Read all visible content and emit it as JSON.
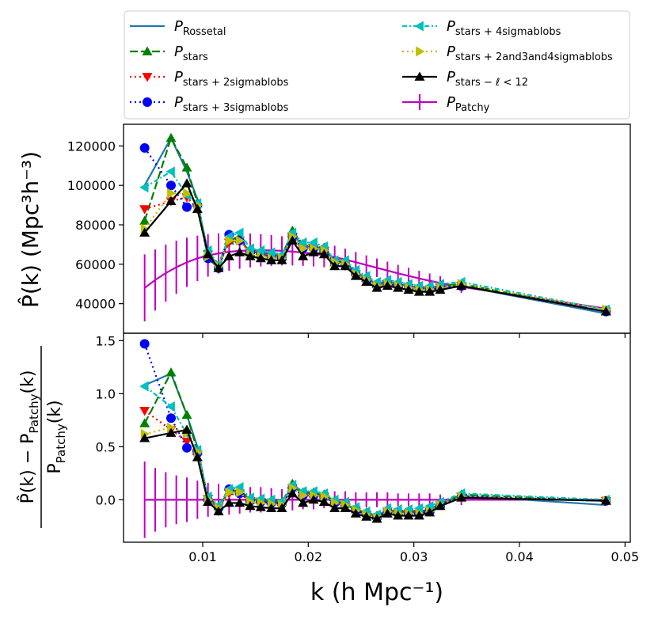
{
  "chart_data": [
    {
      "panel": "top",
      "type": "line",
      "ylabel": "P̂(k) (Mpc³h⁻³)",
      "xlim": [
        0.0025,
        0.0505
      ],
      "ylim": [
        25000,
        131000
      ],
      "yticks": [
        40000,
        60000,
        80000,
        100000,
        120000
      ],
      "ytick_labels": [
        "40000",
        "60000",
        "80000",
        "100000",
        "120000"
      ],
      "x": [
        0.0045,
        0.007,
        0.0085,
        0.0095,
        0.0105,
        0.0115,
        0.0125,
        0.0135,
        0.0145,
        0.0155,
        0.0165,
        0.0175,
        0.0185,
        0.0195,
        0.0205,
        0.0215,
        0.0225,
        0.0235,
        0.0245,
        0.0255,
        0.0265,
        0.0275,
        0.0285,
        0.0295,
        0.0305,
        0.0315,
        0.0325,
        0.0345,
        0.0482
      ],
      "series": [
        {
          "name": "Rossetal",
          "color": "#1f77b4",
          "dash": "",
          "marker": "none",
          "values": [
            100000,
            124000,
            107000,
            93000,
            63000,
            58000,
            73000,
            73000,
            66000,
            66000,
            65000,
            64000,
            76000,
            69000,
            69000,
            68000,
            62000,
            61000,
            56000,
            53000,
            50000,
            51000,
            50000,
            49000,
            48000,
            48000,
            49000,
            49000,
            35000
          ]
        },
        {
          "name": "stars",
          "color": "#008000",
          "dash": "10,4",
          "marker": "triangle-up",
          "values": [
            82000,
            124000,
            109000,
            91000,
            66000,
            59000,
            72000,
            74000,
            66000,
            66000,
            65000,
            64000,
            77000,
            70000,
            70000,
            68000,
            61000,
            61000,
            56000,
            53000,
            50000,
            51000,
            50000,
            49000,
            48000,
            48000,
            49000,
            50000,
            36000
          ]
        },
        {
          "name": "stars + 2sigmablobs",
          "color": "#ff0000",
          "dash": "2,4",
          "marker": "triangle-down",
          "values": [
            88000,
            92000,
            94000,
            88000,
            65000,
            59000,
            71000,
            72000,
            66000,
            65000,
            64000,
            63000,
            74000,
            68000,
            68000,
            67000,
            61000,
            60000,
            55000,
            52000,
            49000,
            50000,
            49000,
            48000,
            47000,
            47000,
            48000,
            49000,
            36000
          ]
        },
        {
          "name": "stars + 3sigmablobs",
          "color": "#0000ff",
          "dash": "2,4",
          "marker": "circle",
          "values": [
            119000,
            100000,
            89000,
            90000,
            63000,
            58000,
            75000,
            72000,
            66000,
            65000,
            64000,
            63000,
            74000,
            68000,
            68000,
            67000,
            61000,
            60000,
            55000,
            52000,
            49000,
            50000,
            49000,
            48000,
            47000,
            47000,
            48000,
            49000,
            36000
          ]
        },
        {
          "name": "stars + 4sigmablobs",
          "color": "#00bfbf",
          "dash": "6,3,2,3",
          "marker": "triangle-left",
          "values": [
            99000,
            107000,
            95000,
            91000,
            67000,
            60000,
            74000,
            76000,
            68000,
            67000,
            66000,
            65000,
            76000,
            71000,
            71000,
            69000,
            62000,
            62000,
            57000,
            54000,
            51000,
            52000,
            51000,
            50000,
            49000,
            49000,
            50000,
            51000,
            37000
          ]
        },
        {
          "name": "stars + 2and3and4sigmablobs",
          "color": "#bfbf00",
          "dash": "2,4",
          "marker": "triangle-right",
          "values": [
            78000,
            96000,
            96000,
            90000,
            64000,
            59000,
            72000,
            72000,
            65000,
            64000,
            63000,
            63000,
            74000,
            68000,
            68000,
            67000,
            61000,
            60000,
            55000,
            52000,
            49000,
            50000,
            49000,
            48000,
            47000,
            47000,
            48000,
            50000,
            37000
          ]
        },
        {
          "name": "stars − ℓ < 12",
          "color": "#000000",
          "dash": "",
          "marker": "triangle-up",
          "values": [
            76000,
            92000,
            101000,
            88000,
            65000,
            58000,
            64000,
            66000,
            64000,
            63000,
            62000,
            62000,
            72000,
            64000,
            66000,
            65000,
            59000,
            59000,
            54000,
            51000,
            48000,
            49000,
            48000,
            47000,
            46000,
            46000,
            47000,
            49000,
            36000
          ]
        }
      ],
      "patchy": {
        "name": "Patchy",
        "color": "#bf00bf",
        "x": [
          0.0045,
          0.0055,
          0.0065,
          0.0075,
          0.0085,
          0.0095,
          0.0105,
          0.0115,
          0.0125,
          0.0135,
          0.0145,
          0.0155,
          0.0165,
          0.0175,
          0.0185,
          0.0195,
          0.0205,
          0.0215,
          0.0225,
          0.0235,
          0.0245,
          0.0255,
          0.0265,
          0.0275,
          0.0285,
          0.0295,
          0.0305,
          0.0315,
          0.0325,
          0.0345,
          0.0482
        ],
        "values": [
          48000,
          52000,
          55500,
          58500,
          61000,
          63000,
          64500,
          65500,
          66300,
          66800,
          67000,
          67100,
          67000,
          66800,
          66400,
          65900,
          65300,
          64600,
          63600,
          62400,
          61000,
          59600,
          58200,
          56800,
          55400,
          54100,
          52800,
          51600,
          50500,
          48500,
          37500
        ],
        "errors": [
          17000,
          15500,
          14500,
          13500,
          12500,
          11500,
          10800,
          10200,
          9600,
          9100,
          8600,
          8200,
          7800,
          7400,
          7000,
          6700,
          6400,
          6100,
          5800,
          5500,
          5200,
          4900,
          4700,
          4500,
          4300,
          4100,
          3900,
          3700,
          3500,
          3000,
          1500
        ]
      }
    },
    {
      "panel": "bottom",
      "type": "line",
      "xlabel": "k (h Mpc⁻¹)",
      "ylabel_numerator": "P̂(k) − P",
      "ylabel_denominator": "P",
      "ylabel_subscript": "Patchy",
      "ylabel_arg": "(k)",
      "xlim": [
        0.0025,
        0.0505
      ],
      "ylim": [
        -0.4,
        1.57
      ],
      "xticks": [
        0.01,
        0.02,
        0.03,
        0.04,
        0.05
      ],
      "xtick_labels": [
        "0.01",
        "0.02",
        "0.03",
        "0.04",
        "0.05"
      ],
      "yticks": [
        0.0,
        0.5,
        1.0,
        1.5
      ],
      "ytick_labels": [
        "0.0",
        "0.5",
        "1.0",
        "1.5"
      ],
      "x": [
        0.0045,
        0.007,
        0.0085,
        0.0095,
        0.0105,
        0.0115,
        0.0125,
        0.0135,
        0.0145,
        0.0155,
        0.0165,
        0.0175,
        0.0185,
        0.0195,
        0.0205,
        0.0215,
        0.0225,
        0.0235,
        0.0245,
        0.0255,
        0.0265,
        0.0275,
        0.0285,
        0.0295,
        0.0305,
        0.0315,
        0.0325,
        0.0345,
        0.0482
      ],
      "series": [
        {
          "name": "Rossetal",
          "color": "#1f77b4",
          "dash": "",
          "marker": "none",
          "values": [
            1.08,
            1.19,
            0.8,
            0.5,
            0.0,
            -0.08,
            0.08,
            0.08,
            0.0,
            0.0,
            -0.02,
            -0.03,
            0.13,
            0.06,
            0.06,
            0.04,
            -0.02,
            -0.05,
            -0.09,
            -0.13,
            -0.16,
            -0.1,
            -0.12,
            -0.12,
            -0.12,
            -0.1,
            -0.05,
            0.04,
            -0.05
          ]
        },
        {
          "name": "stars",
          "color": "#008000",
          "dash": "10,4",
          "marker": "triangle-up",
          "values": [
            0.72,
            1.2,
            0.8,
            0.46,
            0.02,
            -0.06,
            0.08,
            0.09,
            0.0,
            0.0,
            -0.01,
            -0.02,
            0.15,
            0.07,
            0.07,
            0.05,
            -0.01,
            -0.04,
            -0.09,
            -0.12,
            -0.15,
            -0.1,
            -0.11,
            -0.11,
            -0.11,
            -0.09,
            -0.04,
            0.05,
            -0.01
          ]
        },
        {
          "name": "stars + 2sigmablobs",
          "color": "#ff0000",
          "dash": "2,4",
          "marker": "triangle-down",
          "values": [
            0.84,
            0.66,
            0.55,
            0.42,
            0.01,
            -0.07,
            0.06,
            0.06,
            -0.01,
            -0.02,
            -0.03,
            -0.04,
            0.11,
            0.04,
            0.04,
            0.03,
            -0.03,
            -0.05,
            -0.1,
            -0.14,
            -0.17,
            -0.11,
            -0.13,
            -0.13,
            -0.13,
            -0.11,
            -0.05,
            0.03,
            -0.01
          ]
        },
        {
          "name": "stars + 3sigmablobs",
          "color": "#0000ff",
          "dash": "2,4",
          "marker": "circle",
          "values": [
            1.47,
            0.77,
            0.49,
            0.44,
            0.0,
            -0.08,
            0.1,
            0.06,
            -0.01,
            -0.02,
            -0.03,
            -0.04,
            0.11,
            0.04,
            0.04,
            0.03,
            -0.03,
            -0.05,
            -0.1,
            -0.14,
            -0.17,
            -0.11,
            -0.13,
            -0.13,
            -0.13,
            -0.11,
            -0.05,
            0.03,
            -0.01
          ]
        },
        {
          "name": "stars + 4sigmablobs",
          "color": "#00bfbf",
          "dash": "6,3,2,3",
          "marker": "triangle-left",
          "values": [
            1.07,
            0.88,
            0.62,
            0.47,
            0.03,
            -0.05,
            0.1,
            0.12,
            0.02,
            0.01,
            0.0,
            -0.01,
            0.14,
            0.08,
            0.08,
            0.06,
            0.0,
            -0.02,
            -0.07,
            -0.11,
            -0.14,
            -0.08,
            -0.09,
            -0.09,
            -0.08,
            -0.06,
            -0.02,
            0.06,
            0.0
          ]
        },
        {
          "name": "stars + 2and3and4sigmablobs",
          "color": "#bfbf00",
          "dash": "2,4",
          "marker": "triangle-right",
          "values": [
            0.62,
            0.68,
            0.63,
            0.45,
            0.0,
            -0.08,
            0.07,
            0.07,
            -0.02,
            -0.03,
            -0.04,
            -0.05,
            0.11,
            0.04,
            0.04,
            0.03,
            -0.03,
            -0.05,
            -0.1,
            -0.14,
            -0.17,
            -0.11,
            -0.13,
            -0.13,
            -0.13,
            -0.11,
            -0.05,
            0.03,
            -0.01
          ]
        },
        {
          "name": "stars − ℓ < 12",
          "color": "#000000",
          "dash": "",
          "marker": "triangle-up",
          "values": [
            0.58,
            0.63,
            0.66,
            0.4,
            -0.02,
            -0.11,
            -0.03,
            -0.03,
            -0.06,
            -0.07,
            -0.08,
            -0.08,
            0.06,
            -0.03,
            0.0,
            -0.02,
            -0.08,
            -0.08,
            -0.13,
            -0.16,
            -0.18,
            -0.13,
            -0.15,
            -0.15,
            -0.15,
            -0.12,
            -0.06,
            0.02,
            -0.01
          ]
        }
      ],
      "patchy": {
        "name": "Patchy",
        "color": "#bf00bf",
        "x": [
          0.0045,
          0.0055,
          0.0065,
          0.0075,
          0.0085,
          0.0095,
          0.0105,
          0.0115,
          0.0125,
          0.0135,
          0.0145,
          0.0155,
          0.0165,
          0.0175,
          0.0185,
          0.0195,
          0.0205,
          0.0215,
          0.0225,
          0.0235,
          0.0245,
          0.0255,
          0.0265,
          0.0275,
          0.0285,
          0.0295,
          0.0305,
          0.0315,
          0.0325,
          0.0345,
          0.0482
        ],
        "values": [
          0,
          0,
          0,
          0,
          0,
          0,
          0,
          0,
          0,
          0,
          0,
          0,
          0,
          0,
          0,
          0,
          0,
          0,
          0,
          0,
          0,
          0,
          0,
          0,
          0,
          0,
          0,
          0,
          0,
          0,
          0
        ],
        "errors": [
          0.36,
          0.3,
          0.26,
          0.23,
          0.21,
          0.18,
          0.16,
          0.15,
          0.14,
          0.13,
          0.12,
          0.12,
          0.11,
          0.1,
          0.1,
          0.09,
          0.09,
          0.08,
          0.08,
          0.08,
          0.07,
          0.07,
          0.07,
          0.07,
          0.06,
          0.06,
          0.06,
          0.06,
          0.05,
          0.05,
          0.03
        ]
      }
    }
  ],
  "legend": {
    "symbol": "P",
    "entries": [
      {
        "subscript": "Rossetal",
        "color": "#1f77b4",
        "dash": "",
        "marker": "none"
      },
      {
        "subscript": "stars",
        "color": "#008000",
        "dash": "10,4",
        "marker": "triangle-up"
      },
      {
        "subscript": "stars + 2sigmablobs",
        "color": "#ff0000",
        "dash": "2,4",
        "marker": "triangle-down"
      },
      {
        "subscript": "stars + 3sigmablobs",
        "color": "#0000ff",
        "dash": "2,4",
        "marker": "circle"
      },
      {
        "subscript": "stars + 4sigmablobs",
        "color": "#00bfbf",
        "dash": "6,3,2,3",
        "marker": "triangle-left"
      },
      {
        "subscript": "stars + 2and3and4sigmablobs",
        "color": "#bfbf00",
        "dash": "2,4",
        "marker": "triangle-right"
      },
      {
        "subscript": "stars − ℓ < 12",
        "color": "#000000",
        "dash": "",
        "marker": "triangle-up"
      },
      {
        "subscript": "Patchy",
        "color": "#bf00bf",
        "dash": "",
        "marker": "errorbar"
      }
    ]
  }
}
